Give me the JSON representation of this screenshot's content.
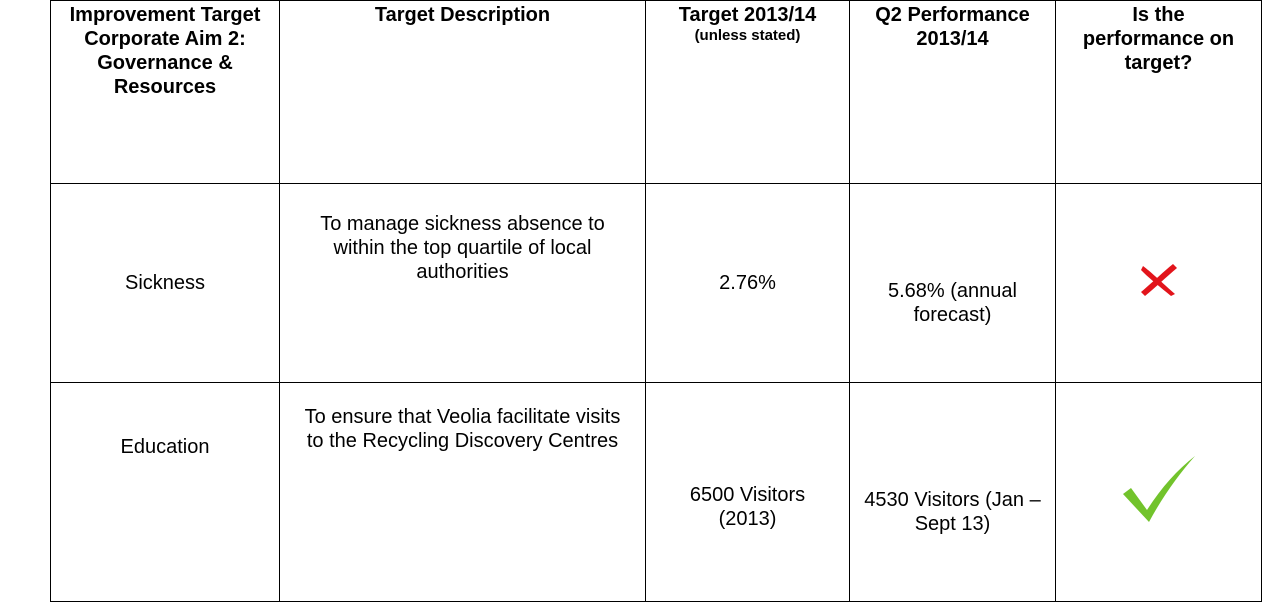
{
  "table": {
    "header": [
      "Improvement Target Corporate Aim 2: Governance & Resources",
      "Target Description",
      "Target 2013/14",
      "Q2 Performance 2013/14",
      "Is the performance on target?"
    ],
    "header_note": "(unless stated)",
    "rows": [
      [
        "Sickness",
        "To manage sickness absence to within the top quartile of local authorities",
        "2.76%",
        "5.68% (annual forecast)"
      ],
      [
        "Education",
        "To ensure that Veolia facilitate visits to the Recycling Discovery Centres",
        "6500 Visitors (2013)",
        "4530 Visitors (Jan – Sept 13)"
      ]
    ]
  }
}
